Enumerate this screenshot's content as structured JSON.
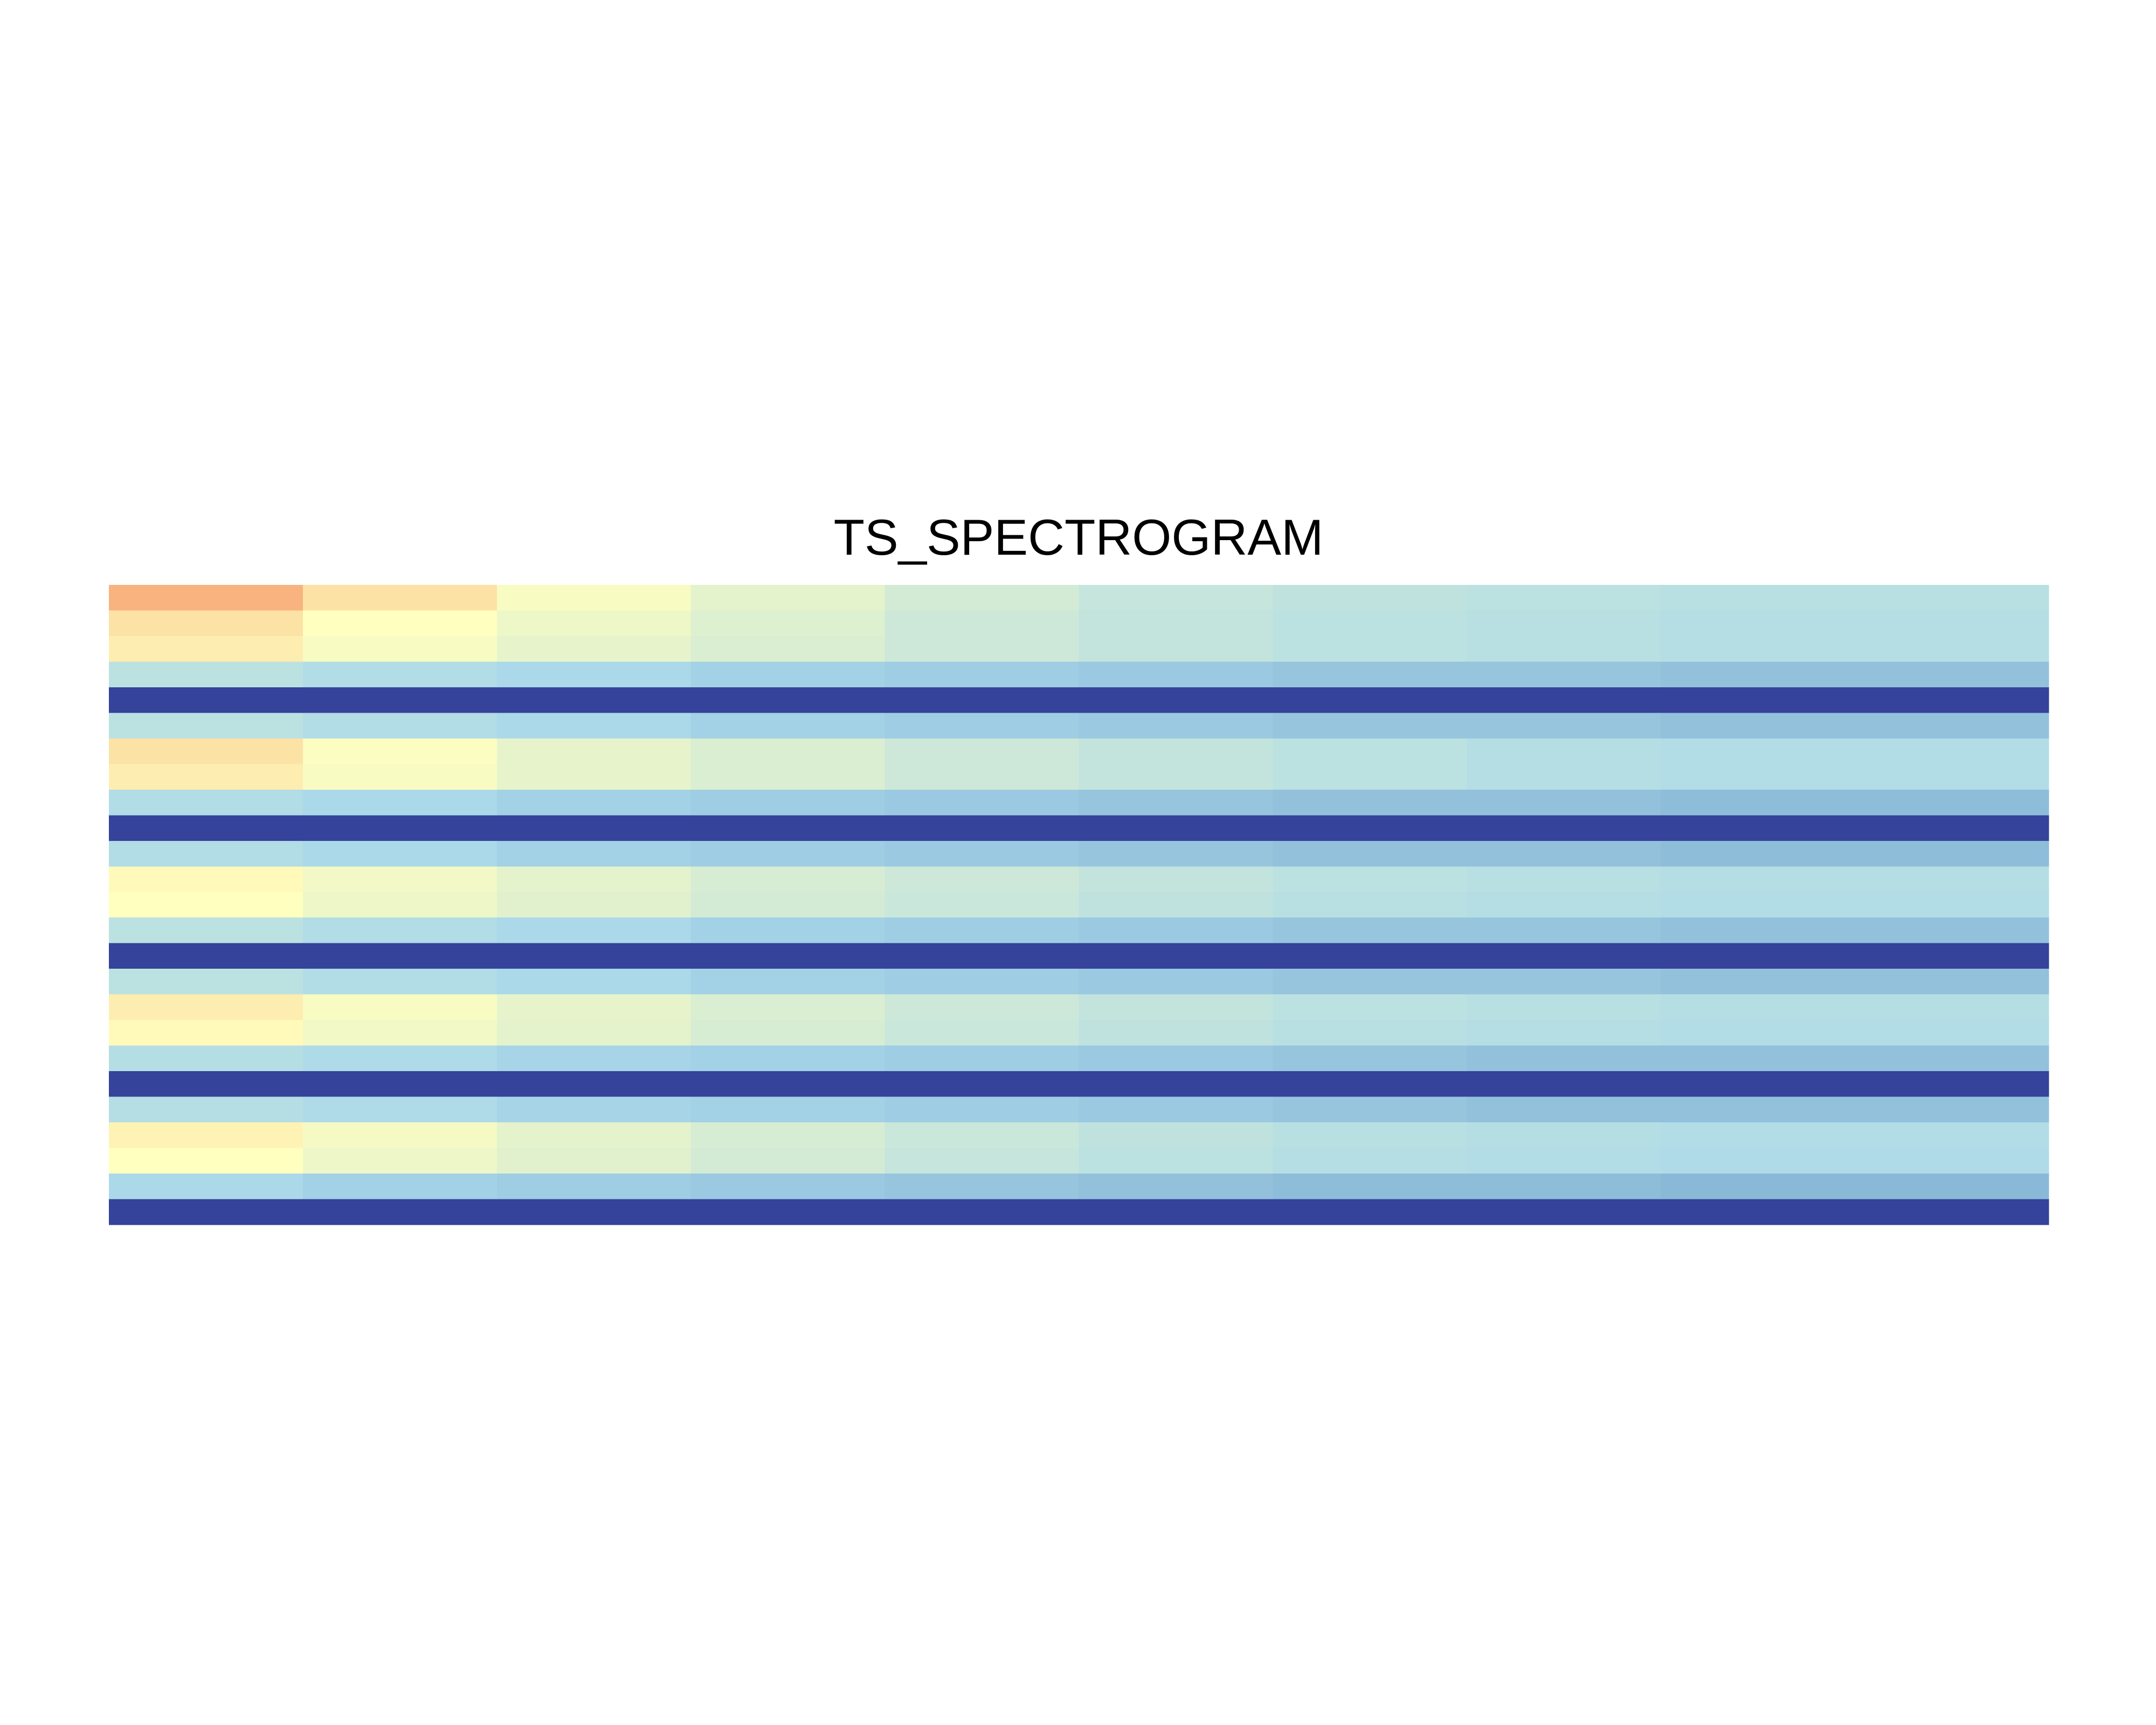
{
  "chart_data": {
    "type": "heatmap",
    "title": "TS_SPECTROGRAM",
    "zlim": [
      0,
      1
    ],
    "colorscale": [
      "#f46d43",
      "#ffffbf",
      "#abd9e9",
      "#4575b4",
      "#313695"
    ],
    "z": [
      [
        0.12,
        0.2,
        0.27,
        0.33,
        0.38,
        0.42,
        0.44,
        0.45,
        0.46,
        0.46
      ],
      [
        0.2,
        0.25,
        0.3,
        0.35,
        0.4,
        0.43,
        0.45,
        0.46,
        0.47,
        0.47
      ],
      [
        0.22,
        0.27,
        0.32,
        0.36,
        0.4,
        0.43,
        0.45,
        0.46,
        0.47,
        0.47
      ],
      [
        0.45,
        0.48,
        0.5,
        0.52,
        0.53,
        0.54,
        0.55,
        0.55,
        0.56,
        0.56
      ],
      [
        0.95,
        0.95,
        0.95,
        0.95,
        0.95,
        0.95,
        0.95,
        0.95,
        0.95,
        0.95
      ],
      [
        0.45,
        0.48,
        0.5,
        0.52,
        0.53,
        0.54,
        0.55,
        0.55,
        0.56,
        0.56
      ],
      [
        0.2,
        0.26,
        0.32,
        0.36,
        0.4,
        0.43,
        0.45,
        0.47,
        0.48,
        0.48
      ],
      [
        0.22,
        0.27,
        0.32,
        0.36,
        0.4,
        0.43,
        0.45,
        0.47,
        0.48,
        0.48
      ],
      [
        0.48,
        0.5,
        0.52,
        0.53,
        0.54,
        0.55,
        0.56,
        0.56,
        0.57,
        0.57
      ],
      [
        0.95,
        0.95,
        0.95,
        0.95,
        0.95,
        0.95,
        0.95,
        0.95,
        0.95,
        0.95
      ],
      [
        0.48,
        0.5,
        0.52,
        0.53,
        0.54,
        0.55,
        0.56,
        0.56,
        0.57,
        0.57
      ],
      [
        0.24,
        0.29,
        0.33,
        0.37,
        0.4,
        0.43,
        0.45,
        0.46,
        0.47,
        0.47
      ],
      [
        0.25,
        0.3,
        0.34,
        0.38,
        0.41,
        0.44,
        0.46,
        0.47,
        0.48,
        0.48
      ],
      [
        0.45,
        0.48,
        0.5,
        0.52,
        0.53,
        0.54,
        0.55,
        0.55,
        0.56,
        0.56
      ],
      [
        0.95,
        0.95,
        0.95,
        0.95,
        0.95,
        0.95,
        0.95,
        0.95,
        0.95,
        0.95
      ],
      [
        0.45,
        0.48,
        0.5,
        0.52,
        0.53,
        0.54,
        0.55,
        0.55,
        0.56,
        0.56
      ],
      [
        0.22,
        0.27,
        0.32,
        0.36,
        0.4,
        0.43,
        0.45,
        0.46,
        0.47,
        0.47
      ],
      [
        0.24,
        0.29,
        0.33,
        0.37,
        0.41,
        0.44,
        0.46,
        0.47,
        0.48,
        0.48
      ],
      [
        0.47,
        0.49,
        0.51,
        0.52,
        0.53,
        0.54,
        0.55,
        0.56,
        0.56,
        0.56
      ],
      [
        0.95,
        0.95,
        0.95,
        0.95,
        0.95,
        0.95,
        0.95,
        0.95,
        0.95,
        0.95
      ],
      [
        0.47,
        0.49,
        0.51,
        0.52,
        0.53,
        0.54,
        0.55,
        0.56,
        0.56,
        0.56
      ],
      [
        0.23,
        0.28,
        0.33,
        0.37,
        0.41,
        0.44,
        0.46,
        0.47,
        0.48,
        0.48
      ],
      [
        0.25,
        0.3,
        0.34,
        0.38,
        0.42,
        0.45,
        0.47,
        0.48,
        0.49,
        0.49
      ],
      [
        0.5,
        0.52,
        0.53,
        0.54,
        0.55,
        0.56,
        0.57,
        0.57,
        0.58,
        0.58
      ],
      [
        0.95,
        0.95,
        0.95,
        0.95,
        0.95,
        0.95,
        0.95,
        0.95,
        0.95,
        0.95
      ]
    ]
  }
}
